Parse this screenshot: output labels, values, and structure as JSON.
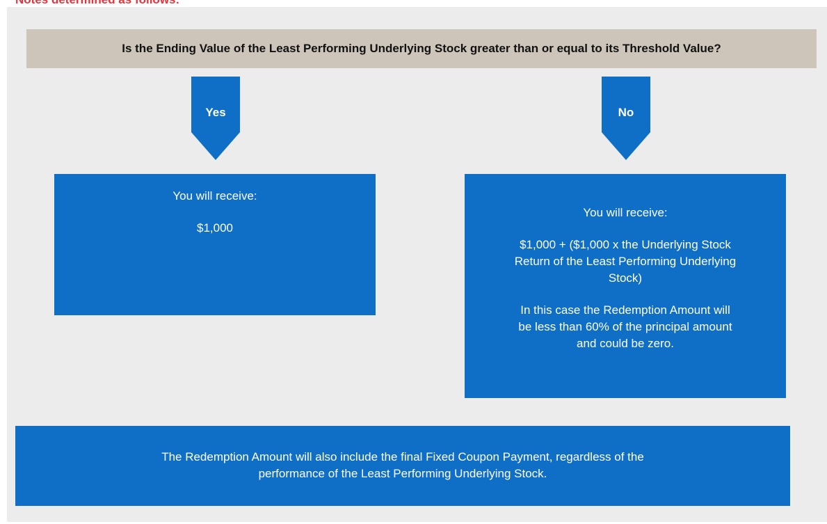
{
  "header": "Notes determined as follows:",
  "question": "Is the Ending Value of the Least Performing Underlying Stock greater than or equal to its Threshold Value?",
  "branches": [
    {
      "label": "Yes",
      "heading": "You will receive:",
      "paragraphs": [
        [
          "$1,000"
        ]
      ]
    },
    {
      "label": "No",
      "heading": "You will receive:",
      "paragraphs": [
        [
          "$1,000 + ($1,000 x the Underlying Stock",
          "Return of the Least Performing Underlying",
          "Stock)"
        ],
        [
          "In this case the Redemption Amount will",
          "be less than 60% of the principal amount",
          "and could be zero."
        ]
      ]
    }
  ],
  "footer": [
    "The Redemption Amount will also include the final Fixed Coupon Payment, regardless of the",
    "performance of the Least Performing Underlying Stock."
  ]
}
